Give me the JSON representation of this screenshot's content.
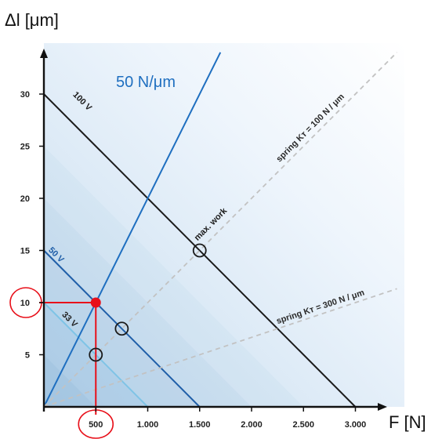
{
  "chart_data": {
    "type": "line",
    "xlabel": "F [N]",
    "ylabel": "Δl [μm]",
    "xlim": [
      0,
      3200
    ],
    "ylim": [
      0,
      35
    ],
    "x_ticks": [
      {
        "value": 500,
        "label": "500"
      },
      {
        "value": 1000,
        "label": "1.000"
      },
      {
        "value": 1500,
        "label": "1.500"
      },
      {
        "value": 2000,
        "label": "2.000"
      },
      {
        "value": 2500,
        "label": "2.500"
      },
      {
        "value": 3000,
        "label": "3.000"
      }
    ],
    "y_ticks": [
      {
        "value": 5,
        "label": "5"
      },
      {
        "value": 10,
        "label": "10"
      },
      {
        "value": 15,
        "label": "15"
      },
      {
        "value": 20,
        "label": "20"
      },
      {
        "value": 25,
        "label": "25"
      },
      {
        "value": 30,
        "label": "30"
      }
    ],
    "series": [
      {
        "name": "100 V",
        "color": "#1a1a1a",
        "style": "solid",
        "points": [
          [
            0,
            30
          ],
          [
            3000,
            0
          ]
        ]
      },
      {
        "name": "50 V",
        "color": "#1f5ea8",
        "style": "solid",
        "points": [
          [
            0,
            15
          ],
          [
            1500,
            0
          ]
        ]
      },
      {
        "name": "33 V",
        "color": "#7fc4e6",
        "style": "solid",
        "points": [
          [
            0,
            10
          ],
          [
            1000,
            0
          ]
        ]
      },
      {
        "name": "50 N/μm",
        "color": "#1f6fc0",
        "style": "solid",
        "points": [
          [
            0,
            0
          ],
          [
            1700,
            34
          ]
        ]
      },
      {
        "name": "spring Kᴛ = 100 N / μm",
        "color": "#c2c2c2",
        "style": "dashed",
        "points": [
          [
            0,
            0
          ],
          [
            3400,
            34
          ]
        ]
      },
      {
        "name": "spring Kᴛ = 300 N / μm",
        "color": "#c2c2c2",
        "style": "dashed",
        "points": [
          [
            0,
            0
          ],
          [
            3400,
            11.33
          ]
        ]
      }
    ],
    "annotations": [
      {
        "text": "max. work",
        "x": 1500,
        "y": 15
      },
      {
        "text": "50 N/μm",
        "x": 1500,
        "y": 30
      }
    ],
    "markers": [
      {
        "type": "open-circle",
        "x": 1500,
        "y": 15
      },
      {
        "type": "open-circle",
        "x": 750,
        "y": 7.5
      },
      {
        "type": "open-circle",
        "x": 500,
        "y": 5
      },
      {
        "type": "filled-point",
        "x": 500,
        "y": 10,
        "color": "#e8101a"
      }
    ],
    "highlights": [
      {
        "type": "red-circle",
        "axis": "x",
        "value": 500
      },
      {
        "type": "red-circle",
        "axis": "y",
        "value": 10
      }
    ],
    "grid": false,
    "legend": "none",
    "colors": {
      "axis": "#111111",
      "background_light": "#f2f8fd",
      "background_dark": "#c9def0",
      "highlight": "#e8101a"
    }
  }
}
